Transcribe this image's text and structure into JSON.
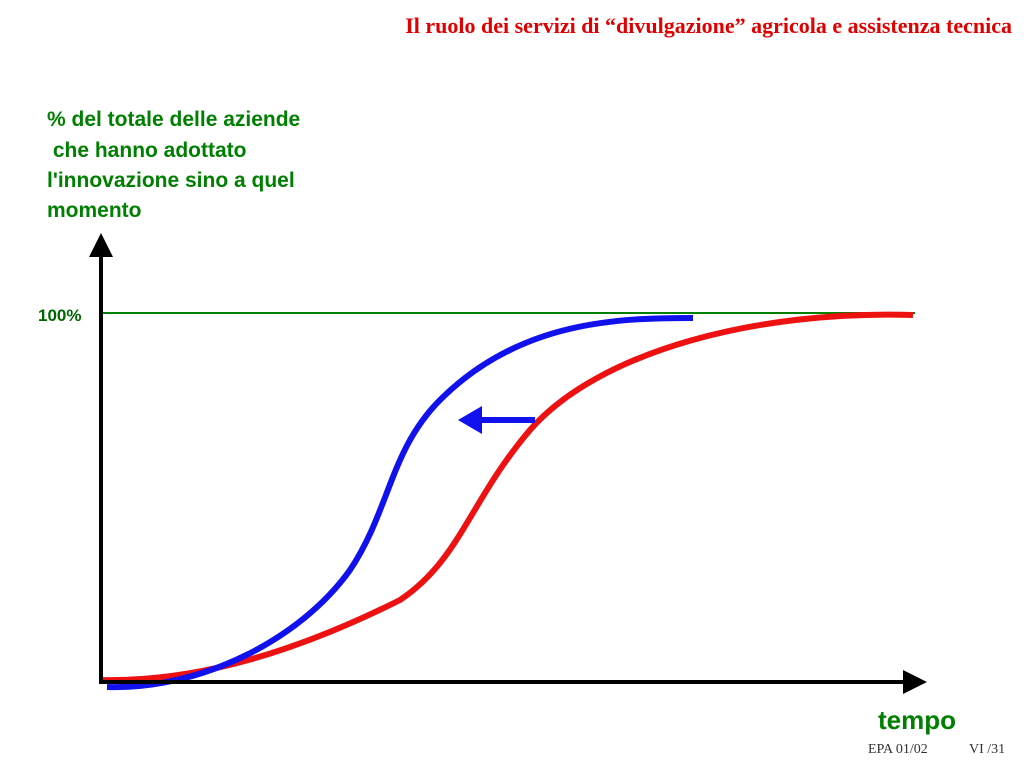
{
  "header": {
    "title": "Il ruolo dei servizi di “divulgazione” agricola e assistenza tecnica"
  },
  "diagram": {
    "y_axis_label": [
      "% del totale delle aziende",
      " che hanno adottato",
      "l'innovazione sino a quel",
      "momento"
    ],
    "reference_label": "100%",
    "x_axis_label": "tempo"
  },
  "footer": {
    "course": "EPA 01/02",
    "page": "VI /31"
  }
}
